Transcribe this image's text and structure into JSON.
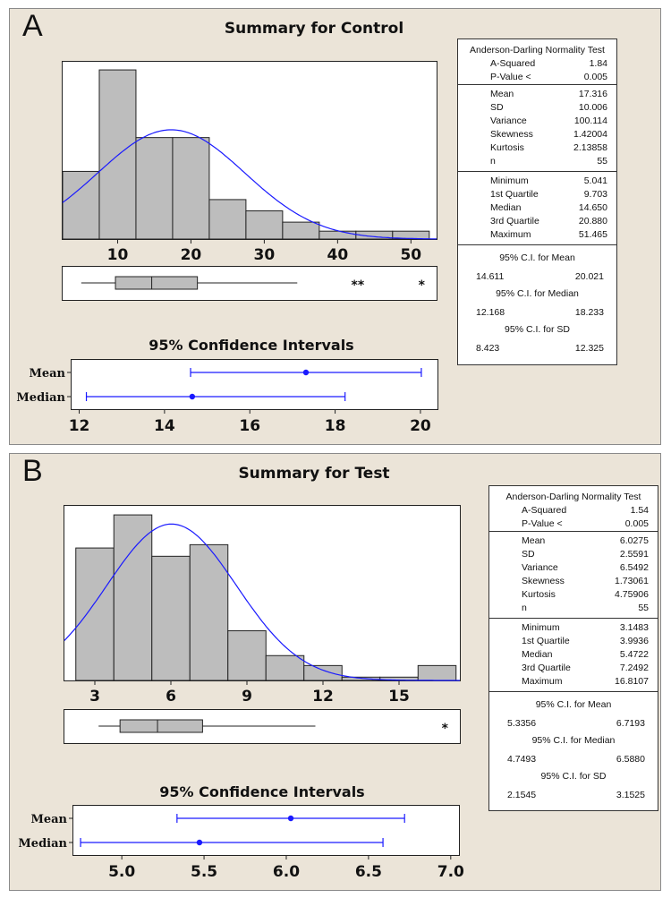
{
  "panels": [
    {
      "letter": "A",
      "title": "Summary for Control",
      "ci_title": "95% Confidence Intervals",
      "stats": {
        "ad_header": "Anderson-Darling Normality  Test",
        "ad_rows": [
          [
            "A-Squared",
            "1.84"
          ],
          [
            "P-Value <",
            "0.005"
          ]
        ],
        "moment_rows": [
          [
            "Mean",
            "17.316"
          ],
          [
            "SD",
            "10.006"
          ],
          [
            "Variance",
            "100.114"
          ],
          [
            "Skewness",
            "1.42004"
          ],
          [
            "Kurtosis",
            "2.13858"
          ],
          [
            "n",
            "55"
          ]
        ],
        "quartile_rows": [
          [
            "Minimum",
            "5.041"
          ],
          [
            "1st Quartile",
            "9.703"
          ],
          [
            "Median",
            "14.650"
          ],
          [
            "3rd Quartile",
            "20.880"
          ],
          [
            "Maximum",
            "51.465"
          ]
        ],
        "ci_blocks": [
          {
            "label": "95% C.I. for Mean",
            "lo": "14.611",
            "hi": "20.021"
          },
          {
            "label": "95% C.I. for Median",
            "lo": "12.168",
            "hi": "18.233"
          },
          {
            "label": "95% C.I. for SD",
            "lo": "8.423",
            "hi": "12.325"
          }
        ]
      }
    },
    {
      "letter": "B",
      "title": "Summary for Test",
      "ci_title": "95% Confidence Intervals",
      "stats": {
        "ad_header": "Anderson-Darling Normality  Test",
        "ad_rows": [
          [
            "A-Squared",
            "1.54"
          ],
          [
            "P-Value <",
            "0.005"
          ]
        ],
        "moment_rows": [
          [
            "Mean",
            "6.0275"
          ],
          [
            "SD",
            "2.5591"
          ],
          [
            "Variance",
            "6.5492"
          ],
          [
            "Skewness",
            "1.73061"
          ],
          [
            "Kurtosis",
            "4.75906"
          ],
          [
            "n",
            "55"
          ]
        ],
        "quartile_rows": [
          [
            "Minimum",
            "3.1483"
          ],
          [
            "1st Quartile",
            "3.9936"
          ],
          [
            "Median",
            "5.4722"
          ],
          [
            "3rd Quartile",
            "7.2492"
          ],
          [
            "Maximum",
            "16.8107"
          ]
        ],
        "ci_blocks": [
          {
            "label": "95% C.I. for Mean",
            "lo": "5.3356",
            "hi": "6.7193"
          },
          {
            "label": "95% C.I. for Median",
            "lo": "4.7493",
            "hi": "6.5880"
          },
          {
            "label": "95% C.I. for SD",
            "lo": "2.1545",
            "hi": "3.1525"
          }
        ]
      }
    }
  ],
  "chart_data": [
    {
      "type": "bar",
      "title": "Summary for Control",
      "bin_edges": [
        2.5,
        7.5,
        12.5,
        17.5,
        22.5,
        27.5,
        32.5,
        37.5,
        42.5,
        47.5,
        52.5
      ],
      "counts": [
        6,
        15,
        9,
        9,
        3.5,
        2.5,
        1.5,
        0.7,
        0.7,
        0.7
      ],
      "ylim": [
        0,
        15.8
      ],
      "xlim": [
        2.5,
        53.5
      ],
      "xticks": [
        10,
        20,
        30,
        40,
        50
      ],
      "normal_curve": {
        "mean": 17.316,
        "sd": 10.006
      },
      "boxplot": {
        "whisker_low": 5.041,
        "q1": 9.703,
        "median": 14.65,
        "q3": 20.88,
        "whisker_high": 34.5,
        "outliers": [
          42.3,
          43.2,
          51.465
        ]
      },
      "ci": {
        "xlim": [
          11.8,
          20.4
        ],
        "xticks": [
          12,
          14,
          16,
          18,
          20
        ],
        "rows": [
          {
            "label": "Mean",
            "lo": 14.611,
            "point": 17.316,
            "hi": 20.021
          },
          {
            "label": "Median",
            "lo": 12.168,
            "point": 14.65,
            "hi": 18.233
          }
        ]
      }
    },
    {
      "type": "bar",
      "title": "Summary for Test",
      "bin_edges": [
        2.25,
        3.75,
        5.25,
        6.75,
        8.25,
        9.75,
        11.25,
        12.75,
        14.25,
        15.75,
        17.25
      ],
      "counts": [
        8,
        10,
        7.5,
        8.2,
        3,
        1.5,
        0.9,
        0.2,
        0.2,
        0.9
      ],
      "ylim": [
        0,
        10.6
      ],
      "xlim": [
        1.8,
        17.4
      ],
      "xticks": [
        3,
        6,
        9,
        12,
        15
      ],
      "normal_curve": {
        "mean": 6.0275,
        "sd": 2.5591
      },
      "boxplot": {
        "whisker_low": 3.1483,
        "q1": 3.9936,
        "median": 5.4722,
        "q3": 7.2492,
        "whisker_high": 11.7,
        "outliers": [
          16.8107
        ]
      },
      "ci": {
        "xlim": [
          4.7,
          7.05
        ],
        "xticks": [
          5.0,
          5.5,
          6.0,
          6.5,
          7.0
        ],
        "xtick_labels": [
          "5.0",
          "5.5",
          "6.0",
          "6.5",
          "7.0"
        ],
        "rows": [
          {
            "label": "Mean",
            "lo": 5.3356,
            "point": 6.0275,
            "hi": 6.7193
          },
          {
            "label": "Median",
            "lo": 4.7493,
            "point": 5.4722,
            "hi": 6.588
          }
        ]
      }
    }
  ]
}
